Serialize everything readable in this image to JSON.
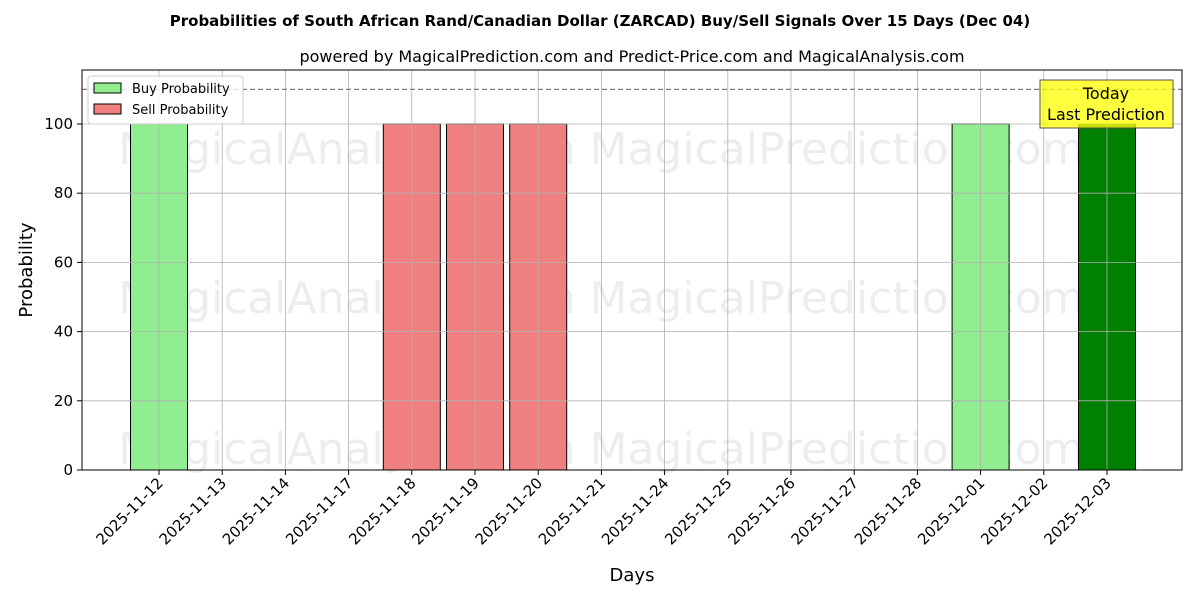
{
  "chart_data": {
    "type": "bar",
    "title": "Probabilities of South African Rand/Canadian Dollar (ZARCAD) Buy/Sell Signals Over 15 Days (Dec 04)",
    "subtitle": "powered by MagicalPrediction.com and Predict-Price.com and MagicalAnalysis.com",
    "xlabel": "Days",
    "ylabel": "Probability",
    "ylim": [
      0,
      115.6
    ],
    "yticks": [
      0,
      20,
      40,
      60,
      80,
      100
    ],
    "grid": true,
    "legend_position": "top-left",
    "categories": [
      "2025-11-12",
      "2025-11-13",
      "2025-11-14",
      "2025-11-17",
      "2025-11-18",
      "2025-11-19",
      "2025-11-20",
      "2025-11-21",
      "2025-11-24",
      "2025-11-25",
      "2025-11-26",
      "2025-11-27",
      "2025-11-28",
      "2025-12-01",
      "2025-12-02",
      "2025-12-03"
    ],
    "series": [
      {
        "name": "Buy Probability",
        "color": "#90ee90",
        "values": [
          100,
          0,
          0,
          0,
          0,
          0,
          0,
          0,
          0,
          0,
          0,
          0,
          0,
          100,
          0,
          100
        ]
      },
      {
        "name": "Sell Probability",
        "color": "#f08080",
        "values": [
          0,
          0,
          0,
          0,
          100,
          100,
          100,
          0,
          0,
          0,
          0,
          0,
          0,
          0,
          0,
          0
        ]
      }
    ],
    "today_index": 15,
    "today_color": "#008000",
    "reference_line": 110,
    "annotation": {
      "line1": "Today",
      "line2": "Last Prediction"
    },
    "watermarks": [
      "MagicalAnalysis.com",
      "MagicalPrediction.com"
    ]
  }
}
